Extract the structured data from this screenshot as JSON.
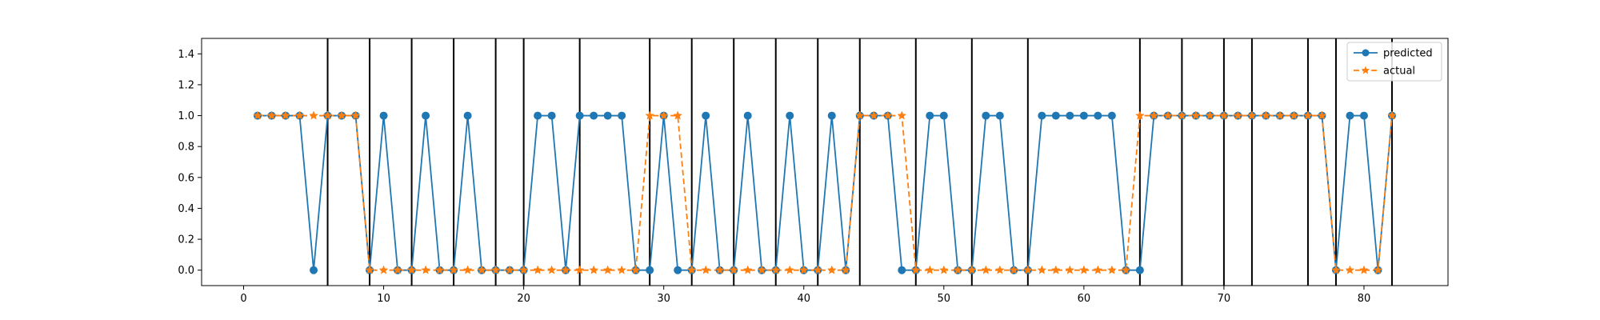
{
  "chart_data": {
    "type": "line",
    "title": "",
    "xlabel": "",
    "ylabel": "",
    "xlim": [
      -3,
      86
    ],
    "ylim": [
      -0.1,
      1.5
    ],
    "x_ticks": [
      0,
      10,
      20,
      30,
      40,
      50,
      60,
      70,
      80
    ],
    "y_ticks": [
      0.0,
      0.2,
      0.4,
      0.6,
      0.8,
      1.0,
      1.2,
      1.4
    ],
    "x_tick_labels": [
      "0",
      "10",
      "20",
      "30",
      "40",
      "50",
      "60",
      "70",
      "80"
    ],
    "y_tick_labels": [
      "0.0",
      "0.2",
      "0.4",
      "0.6",
      "0.8",
      "1.0",
      "1.2",
      "1.4"
    ],
    "legend_position": "top-right",
    "x": [
      1,
      2,
      3,
      4,
      5,
      6,
      7,
      8,
      9,
      10,
      11,
      12,
      13,
      14,
      15,
      16,
      17,
      18,
      19,
      20,
      21,
      22,
      23,
      24,
      25,
      26,
      27,
      28,
      29,
      30,
      31,
      32,
      33,
      34,
      35,
      36,
      37,
      38,
      39,
      40,
      41,
      42,
      43,
      44,
      45,
      46,
      47,
      48,
      49,
      50,
      51,
      52,
      53,
      54,
      55,
      56,
      57,
      58,
      59,
      60,
      61,
      62,
      63,
      64,
      65,
      66,
      67,
      68,
      69,
      70,
      71,
      72,
      73,
      74,
      75,
      76,
      77,
      78,
      79,
      80,
      81,
      82
    ],
    "series": [
      {
        "name": "predicted",
        "color": "#1f77b4",
        "line_style": "solid",
        "marker": "circle",
        "values": [
          1,
          1,
          1,
          1,
          0,
          1,
          1,
          1,
          0,
          1,
          0,
          0,
          1,
          0,
          0,
          1,
          0,
          0,
          0,
          0,
          1,
          1,
          0,
          1,
          1,
          1,
          1,
          0,
          0,
          1,
          0,
          0,
          1,
          0,
          0,
          1,
          0,
          0,
          1,
          0,
          0,
          1,
          0,
          1,
          1,
          1,
          0,
          0,
          1,
          1,
          0,
          0,
          1,
          1,
          0,
          0,
          1,
          1,
          1,
          1,
          1,
          1,
          0,
          0,
          1,
          1,
          1,
          1,
          1,
          1,
          1,
          1,
          1,
          1,
          1,
          1,
          1,
          0,
          1,
          1,
          0,
          1
        ]
      },
      {
        "name": "actual",
        "color": "#ff7f0e",
        "line_style": "dashed",
        "marker": "star",
        "values": [
          1,
          1,
          1,
          1,
          1,
          1,
          1,
          1,
          0,
          0,
          0,
          0,
          0,
          0,
          0,
          0,
          0,
          0,
          0,
          0,
          0,
          0,
          0,
          0,
          0,
          0,
          0,
          0,
          1,
          1,
          1,
          0,
          0,
          0,
          0,
          0,
          0,
          0,
          0,
          0,
          0,
          0,
          0,
          1,
          1,
          1,
          1,
          0,
          0,
          0,
          0,
          0,
          0,
          0,
          0,
          0,
          0,
          0,
          0,
          0,
          0,
          0,
          0,
          1,
          1,
          1,
          1,
          1,
          1,
          1,
          1,
          1,
          1,
          1,
          1,
          1,
          1,
          0,
          0,
          0,
          0,
          1
        ]
      }
    ],
    "vertical_lines": {
      "color": "#000000",
      "x": [
        6,
        9,
        12,
        15,
        18,
        20,
        24,
        29,
        32,
        35,
        38,
        41,
        44,
        48,
        52,
        56,
        64,
        67,
        70,
        72,
        76,
        78,
        82
      ]
    }
  }
}
